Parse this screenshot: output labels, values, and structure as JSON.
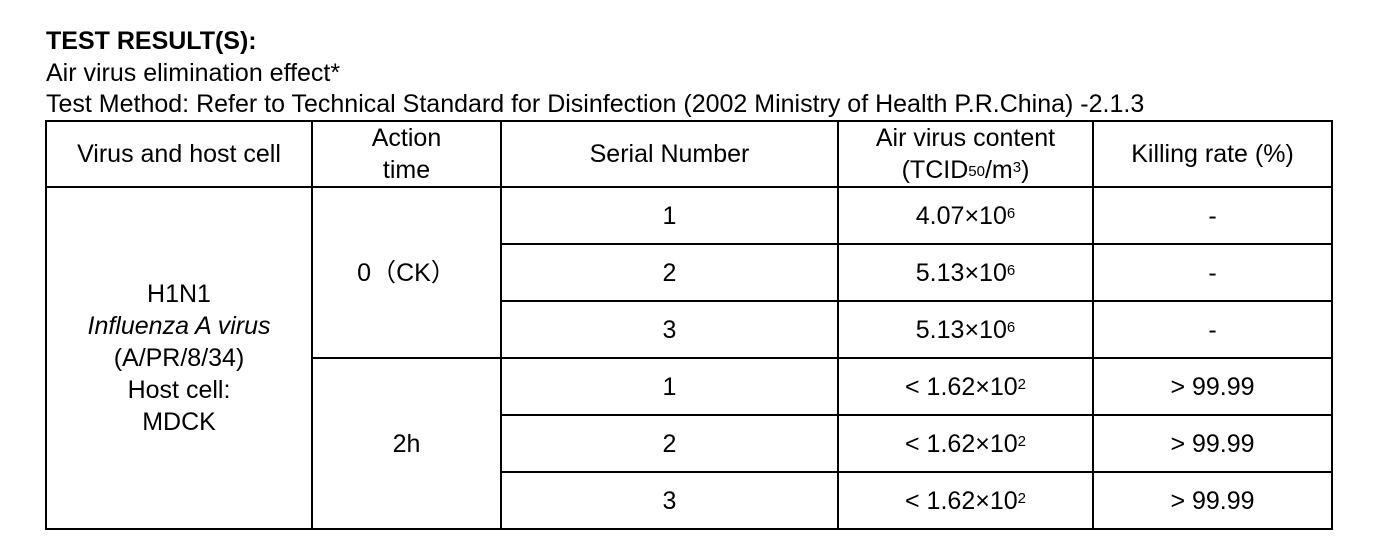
{
  "header": {
    "title": "TEST RESULT(S):",
    "subtitle": "Air virus elimination effect*",
    "method": "Test Method: Refer to Technical Standard for Disinfection (2002 Ministry of Health P.R.China) -2.1.3"
  },
  "table": {
    "columns": {
      "virus_host": "Virus and host cell",
      "action_time_line1": "Action",
      "action_time_line2": "time",
      "serial_number": "Serial Number",
      "content_line1": "Air virus content",
      "content_unit_pre": "(TCID",
      "content_unit_sub": "50",
      "content_unit_mid": "/m",
      "content_unit_sup": "3",
      "content_unit_post": ")",
      "killing_rate": "Killing rate (%)"
    },
    "virus": {
      "name": "H1N1",
      "species": "Influenza A virus",
      "strain": "(A/PR/8/34)",
      "host_label": "Host cell:",
      "host": "MDCK"
    },
    "groups": [
      {
        "action_time": "0（CK）",
        "rows": [
          {
            "serial": "1",
            "content_base": "4.07×10",
            "content_exp": "6",
            "killing_rate": "-"
          },
          {
            "serial": "2",
            "content_base": "5.13×10",
            "content_exp": "6",
            "killing_rate": "-"
          },
          {
            "serial": "3",
            "content_base": "5.13×10",
            "content_exp": "6",
            "killing_rate": "-"
          }
        ]
      },
      {
        "action_time": "2h",
        "rows": [
          {
            "serial": "1",
            "content_base": "< 1.62×10",
            "content_exp": "2",
            "killing_rate": "> 99.99"
          },
          {
            "serial": "2",
            "content_base": "< 1.62×10",
            "content_exp": "2",
            "killing_rate": "> 99.99"
          },
          {
            "serial": "3",
            "content_base": "< 1.62×10",
            "content_exp": "2",
            "killing_rate": "> 99.99"
          }
        ]
      }
    ]
  }
}
